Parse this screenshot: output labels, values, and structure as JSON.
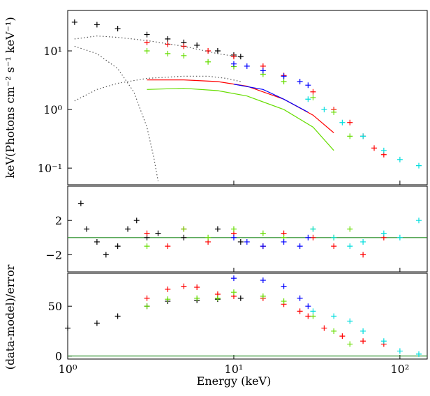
{
  "chart_data": [
    {
      "type": "scatter",
      "ylabel": "keV(Photons cm⁻² s⁻¹ keV⁻¹)",
      "ylog": true,
      "ylim": [
        0.052,
        49
      ],
      "yticks": [
        {
          "value": 0.1,
          "label": "10⁻¹"
        },
        {
          "value": 1,
          "label": "10⁰"
        },
        {
          "value": 10,
          "label": "10¹"
        }
      ],
      "series": [
        {
          "color": "#000000",
          "marker": "cross",
          "x": [
            1.1,
            1.5,
            2,
            3,
            4,
            5,
            6,
            8,
            10,
            11
          ],
          "values": [
            31,
            28,
            24,
            19,
            16,
            14,
            12.5,
            10,
            8.5,
            8
          ]
        },
        {
          "color": "#ff0000",
          "marker": "cross",
          "x": [
            3,
            4,
            5,
            7,
            10,
            15,
            20,
            30,
            40,
            50,
            60,
            70,
            80
          ],
          "values": [
            14,
            13,
            12,
            10,
            8,
            5.5,
            3.8,
            2,
            1,
            0.6,
            0.35,
            0.22,
            0.17
          ]
        },
        {
          "color": "#66dd00",
          "marker": "cross",
          "x": [
            3,
            4,
            5,
            7,
            10,
            15,
            20,
            30,
            40,
            50
          ],
          "values": [
            10,
            9,
            8.3,
            6.5,
            5.4,
            4,
            3,
            1.6,
            0.9,
            0.35
          ]
        },
        {
          "color": "#0000ff",
          "marker": "cross",
          "x": [
            10,
            12,
            15,
            20,
            25,
            28
          ],
          "values": [
            6,
            5.5,
            4.6,
            3.7,
            3,
            2.6
          ]
        },
        {
          "color": "#00dddd",
          "marker": "cross",
          "x": [
            28,
            35,
            45,
            60,
            80,
            100,
            130
          ],
          "values": [
            1.5,
            1.0,
            0.6,
            0.35,
            0.2,
            0.14,
            0.11
          ]
        },
        {
          "color": "#555555",
          "marker": "dotted",
          "x": [
            1.1,
            1.5,
            2,
            3,
            5,
            8,
            11
          ],
          "values": [
            16,
            18,
            17,
            15,
            12,
            9,
            7.8
          ]
        },
        {
          "color": "#555555",
          "marker": "dotted",
          "x": [
            1.1,
            1.5,
            2,
            2.5,
            3,
            3.3,
            3.5
          ],
          "values": [
            12,
            9,
            5,
            2,
            0.5,
            0.15,
            0.06
          ]
        },
        {
          "color": "#555555",
          "marker": "dotted",
          "x": [
            1.1,
            1.5,
            2,
            3,
            5,
            7,
            9,
            11
          ],
          "values": [
            1.4,
            2.2,
            2.8,
            3.4,
            3.7,
            3.7,
            3.4,
            3
          ]
        },
        {
          "color": "#ff0000",
          "marker": "line",
          "x": [
            3,
            5,
            8,
            12,
            20,
            30,
            40
          ],
          "values": [
            3.2,
            3.2,
            3,
            2.5,
            1.5,
            0.8,
            0.4
          ]
        },
        {
          "color": "#66dd00",
          "marker": "line",
          "x": [
            3,
            5,
            8,
            12,
            20,
            30,
            40
          ],
          "values": [
            2.2,
            2.3,
            2.1,
            1.7,
            1.0,
            0.5,
            0.2
          ]
        },
        {
          "color": "#0000ff",
          "marker": "line",
          "x": [
            10,
            15,
            20,
            28
          ],
          "values": [
            2.7,
            2.2,
            1.5,
            0.9
          ]
        }
      ]
    },
    {
      "type": "scatter",
      "ylim": [
        -4,
        6
      ],
      "hline": 0,
      "hline_color": "#228b22",
      "yticks": [
        {
          "value": -2,
          "label": "−2"
        },
        2
      ],
      "series": [
        {
          "color": "#000000",
          "marker": "cross",
          "x": [
            1.2,
            1.3,
            1.5,
            1.7,
            2,
            2.3,
            2.6,
            3,
            3.5,
            5,
            8,
            11
          ],
          "values": [
            4,
            1,
            -0.5,
            -2,
            -1,
            1,
            2,
            0,
            0.5,
            0,
            1,
            -0.5
          ]
        },
        {
          "color": "#ff0000",
          "marker": "cross",
          "x": [
            3,
            4,
            5,
            7,
            10,
            15,
            20,
            30,
            40,
            60,
            80
          ],
          "values": [
            0.5,
            -1,
            1,
            -0.5,
            0.5,
            -1,
            0.5,
            0,
            -1,
            -2,
            0
          ]
        },
        {
          "color": "#66dd00",
          "marker": "cross",
          "x": [
            3,
            5,
            7,
            10,
            15,
            20,
            30,
            40,
            50
          ],
          "values": [
            -1,
            1,
            0,
            1,
            0.5,
            0,
            1,
            0,
            1
          ]
        },
        {
          "color": "#0000ff",
          "marker": "cross",
          "x": [
            10,
            12,
            15,
            20,
            25,
            28
          ],
          "values": [
            0,
            -0.5,
            -1,
            -0.5,
            -1,
            0
          ]
        },
        {
          "color": "#00dddd",
          "marker": "cross",
          "x": [
            30,
            40,
            50,
            60,
            80,
            100,
            130
          ],
          "values": [
            1,
            0,
            -1,
            -0.5,
            0.5,
            0,
            2
          ]
        }
      ]
    },
    {
      "type": "scatter",
      "ylabel": "(data-model)/error",
      "xlabel": "Energy (keV)",
      "ylim": [
        -3,
        83
      ],
      "hline": 0,
      "hline_color": "#228b22",
      "yticks": [
        0,
        50
      ],
      "xlog": true,
      "xlim": [
        1,
        146
      ],
      "xticks": [
        {
          "value": 1,
          "label": "10⁰"
        },
        {
          "value": 10,
          "label": "10¹"
        },
        {
          "value": 100,
          "label": "10²"
        }
      ],
      "series": [
        {
          "color": "#000000",
          "marker": "cross",
          "x": [
            1,
            1.5,
            2,
            3,
            4,
            6,
            8,
            11
          ],
          "values": [
            28,
            33,
            40,
            50,
            55,
            56,
            57,
            58
          ]
        },
        {
          "color": "#ff0000",
          "marker": "cross",
          "x": [
            3,
            4,
            5,
            6,
            8,
            10,
            15,
            20,
            25,
            28,
            35,
            45,
            60,
            80
          ],
          "values": [
            58,
            67,
            70,
            69,
            62,
            60,
            58,
            52,
            45,
            40,
            28,
            20,
            15,
            12
          ]
        },
        {
          "color": "#66dd00",
          "marker": "cross",
          "x": [
            3,
            4,
            6,
            8,
            10,
            15,
            20,
            30,
            40,
            50
          ],
          "values": [
            50,
            57,
            58,
            58,
            64,
            60,
            55,
            40,
            25,
            12
          ]
        },
        {
          "color": "#0000ff",
          "marker": "cross",
          "x": [
            10,
            15,
            20,
            25,
            28
          ],
          "values": [
            78,
            76,
            70,
            58,
            50
          ]
        },
        {
          "color": "#00dddd",
          "marker": "cross",
          "x": [
            30,
            40,
            50,
            60,
            80,
            100,
            130
          ],
          "values": [
            45,
            40,
            35,
            25,
            15,
            5,
            2
          ]
        }
      ]
    }
  ]
}
